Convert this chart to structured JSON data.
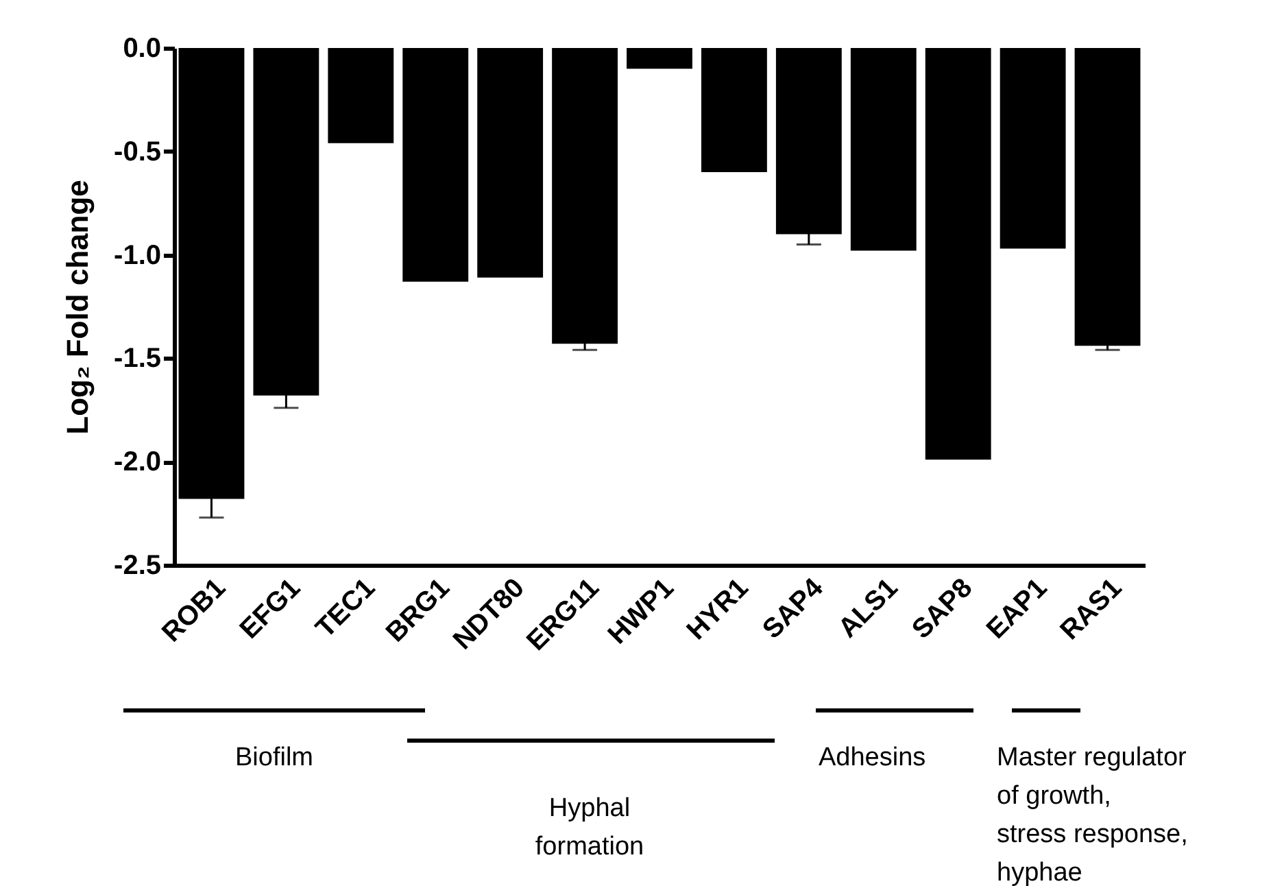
{
  "chart_data": {
    "type": "bar",
    "ylabel": "Log₂ Fold change",
    "categories": [
      "ROB1",
      "EFG1",
      "TEC1",
      "BRG1",
      "NDT80",
      "ERG11",
      "HWP1",
      "HYR1",
      "SAP4",
      "ALS1",
      "SAP8",
      "EAP1",
      "RAS1"
    ],
    "values": [
      -2.18,
      -1.68,
      -0.46,
      -1.13,
      -1.11,
      -1.43,
      -0.1,
      -0.6,
      -0.9,
      -0.98,
      -1.99,
      -0.97,
      -1.44
    ],
    "errors": [
      0.09,
      0.06,
      null,
      null,
      null,
      0.03,
      null,
      null,
      0.05,
      null,
      null,
      null,
      0.02
    ],
    "color": "#000000",
    "ylim": [
      -2.5,
      0.0
    ],
    "yticks": [
      {
        "value": -2.5,
        "label": "-2.5"
      },
      {
        "value": -2.0,
        "label": "-2.0"
      },
      {
        "value": -1.5,
        "label": "-1.5"
      },
      {
        "value": -1.0,
        "label": "-1.0"
      },
      {
        "value": -0.5,
        "label": "-0.5"
      },
      {
        "value": 0.0,
        "label": "0.0"
      }
    ],
    "grid": false,
    "annotations": [
      "Biofilm",
      "Hyphal\nformation",
      "Adhesins",
      "Master regulator\nof growth,\nstress response,\nhyphae"
    ]
  }
}
